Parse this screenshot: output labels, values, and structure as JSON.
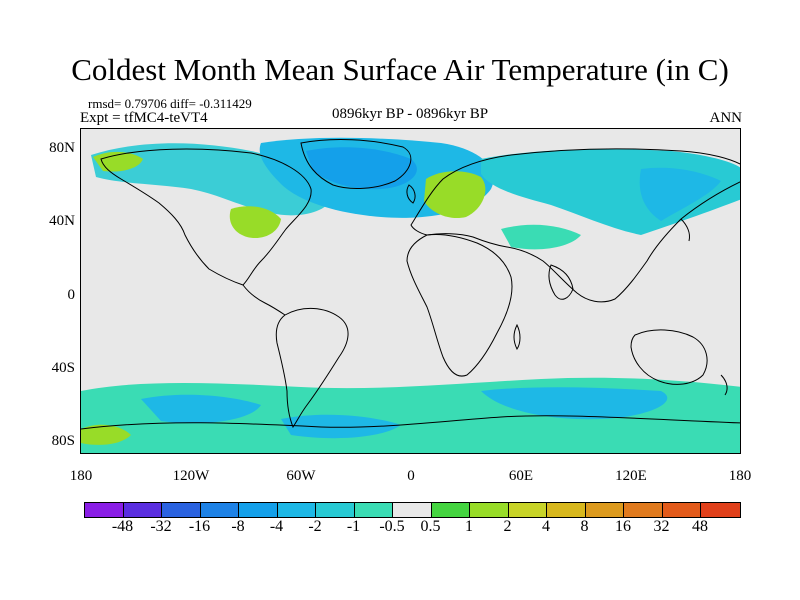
{
  "title": "Coldest Month Mean Surface Air Temperature (in C)",
  "stats": "rmsd= 0.79706 diff= -0.311429",
  "experiment": "Expt = tfMC4-teVT4",
  "period": "0896kyr BP - 0896kyr BP",
  "season": "ANN",
  "lat_labels": [
    "80N",
    "40N",
    "0",
    "40S",
    "80S"
  ],
  "lon_labels": [
    "180",
    "120W",
    "60W",
    "0",
    "60E",
    "120E",
    "180"
  ],
  "colorbar": {
    "colors": [
      "#8a1ee6",
      "#5a2ee0",
      "#2a62e0",
      "#1e82e6",
      "#14a0ea",
      "#1eb8e6",
      "#28cad4",
      "#3adcb4",
      "#e8e8e8",
      "#44d440",
      "#98dc28",
      "#c8d428",
      "#d8b81e",
      "#dc9a1e",
      "#e07a1e",
      "#e25a1a",
      "#e0401a"
    ],
    "labels": [
      "-48",
      "-32",
      "-16",
      "-8",
      "-4",
      "-2",
      "-1",
      "-0.5",
      "0.5",
      "1",
      "2",
      "4",
      "8",
      "16",
      "32",
      "48"
    ]
  }
}
